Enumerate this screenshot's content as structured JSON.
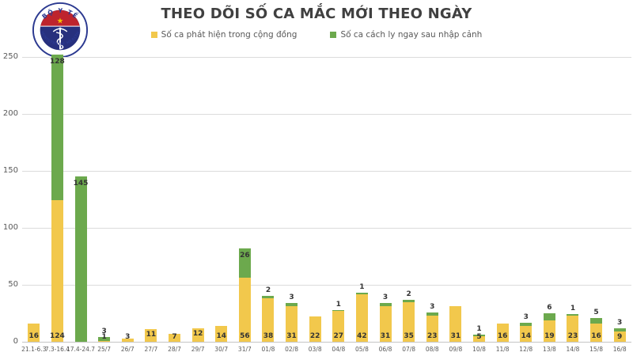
{
  "title": "THEO DÕI SỐ CA MẮC MỚI THEO NGÀY",
  "logo": {
    "top_text": "BỘ Y TẾ",
    "bottom_text": "MINISTRY OF HEALTH",
    "star_glyph": "★",
    "navy": "#2B3990",
    "red": "#BE242D",
    "gold": "#F5C400"
  },
  "legend": [
    {
      "label": "Số ca phát hiện trong cộng đồng",
      "color": "#F2C84C"
    },
    {
      "label": "Số ca cách ly ngay sau nhập cảnh",
      "color": "#6CA94D"
    }
  ],
  "colors": {
    "community_yellow": "#F2C84C",
    "imported_green": "#6CA94D",
    "gridline": "#DBDBDB",
    "text_dark": "#404040",
    "text_gray": "#595959"
  },
  "chart_data": {
    "type": "bar",
    "stacked": true,
    "title": "THEO DÕI SỐ CA MẮC MỚI THEO NGÀY",
    "xlabel": "",
    "ylabel": "",
    "ylim": [
      0,
      260
    ],
    "y_ticks": [
      0,
      50,
      100,
      150,
      200,
      250
    ],
    "grid": true,
    "legend_position": "top",
    "categories": [
      "21.1-6.3",
      "7.3-16.4",
      "17.4-24.7",
      "25/7",
      "26/7",
      "27/7",
      "28/7",
      "29/7",
      "30/7",
      "31/7",
      "01/8",
      "02/8",
      "03/8",
      "04/8",
      "05/8",
      "06/8",
      "07/8",
      "08/8",
      "09/8",
      "10/8",
      "11/8",
      "12/8",
      "13/8",
      "14/8",
      "15/8",
      "16/8"
    ],
    "series": [
      {
        "name": "Số ca phát hiện trong cộng đồng",
        "color": "#F2C84C",
        "values": [
          16,
          124,
          0,
          1,
          3,
          11,
          7,
          12,
          14,
          56,
          38,
          31,
          22,
          27,
          42,
          31,
          35,
          23,
          31,
          5,
          16,
          14,
          19,
          23,
          16,
          9
        ]
      },
      {
        "name": "Số ca cách ly ngay sau nhập cảnh",
        "color": "#6CA94D",
        "values": [
          0,
          128,
          145,
          3,
          0,
          0,
          0,
          0,
          0,
          26,
          2,
          3,
          0,
          1,
          1,
          3,
          2,
          3,
          0,
          1,
          0,
          3,
          6,
          1,
          5,
          3
        ]
      }
    ]
  }
}
